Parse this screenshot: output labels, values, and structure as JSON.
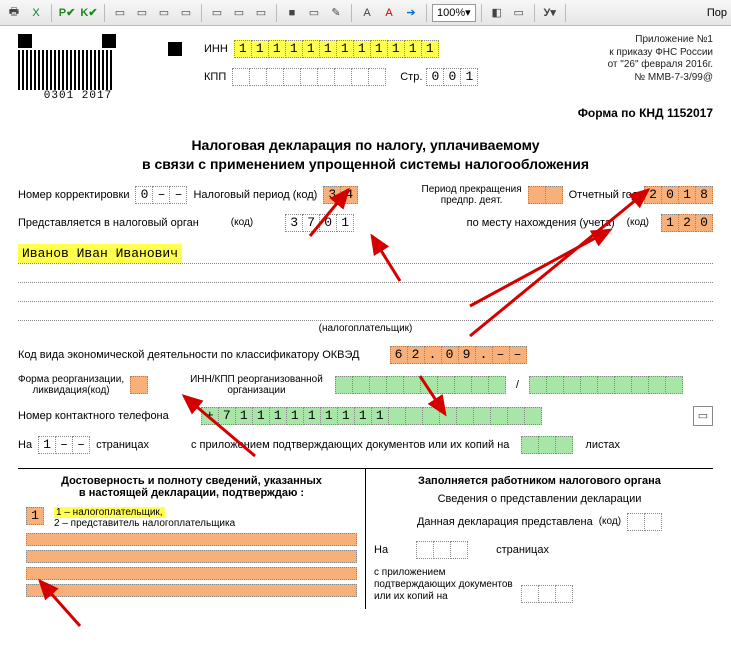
{
  "toolbar": {
    "zoom": "100%",
    "rightLabel": "Пор",
    "btnP": "P",
    "btnK": "K",
    "btnU": "У"
  },
  "hdr": {
    "barcodeLabel": "0301 2017",
    "innLabel": "ИНН",
    "inn": [
      "1",
      "1",
      "1",
      "1",
      "1",
      "1",
      "1",
      "1",
      "1",
      "1",
      "1",
      "1"
    ],
    "kppLabel": "КПП",
    "kpp": [
      "",
      "",
      "",
      "",
      "",
      "",
      "",
      "",
      ""
    ],
    "strLabel": "Стр.",
    "str": [
      "0",
      "0",
      "1"
    ],
    "app1": "Приложение №1",
    "app2": "к приказу ФНС России",
    "app3": "от \"26\" февраля 2016г.",
    "app4": "№ ММВ-7-3/99@",
    "knd": "Форма по КНД 1152017"
  },
  "title1": "Налоговая декларация по налогу, уплачиваемому",
  "title2": "в связи с применением упрощенной системы налогообложения",
  "r1": {
    "corrLabel": "Номер корректировки",
    "corr": [
      "0",
      "–",
      "–"
    ],
    "periodLabel": "Налоговый период  (код)",
    "period": [
      "3",
      "4"
    ],
    "terminLabel1": "Период прекращения",
    "terminLabel2": "предпр. деят.",
    "termin": [
      "",
      ""
    ],
    "yearLabel": "Отчетный год",
    "year": [
      "2",
      "0",
      "1",
      "8"
    ]
  },
  "r2": {
    "submitLabel": "Представляется в налоговый орган",
    "kodLabel": "(код)",
    "organ": [
      "3",
      "7",
      "0",
      "1"
    ],
    "placeLabel": "по месту нахождения (учета)",
    "place": [
      "1",
      "2",
      "0"
    ]
  },
  "fio": "Иванов Иван Иванович",
  "taxpayer": "(налогоплательщик)",
  "okved": {
    "label": "Код вида экономической деятельности по классификатору ОКВЭД",
    "cells": [
      "6",
      "2",
      ".",
      "0",
      "9",
      ".",
      "–",
      "–"
    ]
  },
  "reorg": {
    "formLabel1": "Форма реорганизации,",
    "formLabel2": "ликвидация(код)",
    "form": [
      ""
    ],
    "innkppLabel1": "ИНН/КПП реорганизованной",
    "innkppLabel2": "организации",
    "innkpp1": [
      "",
      "",
      "",
      "",
      "",
      "",
      "",
      "",
      "",
      ""
    ],
    "sep": "/",
    "innkpp2": [
      "",
      "",
      "",
      "",
      "",
      "",
      "",
      "",
      ""
    ]
  },
  "phone": {
    "label": "Номер контактного телефона",
    "cells": [
      "+",
      "7",
      "1",
      "1",
      "1",
      "1",
      "1",
      "1",
      "1",
      "1",
      "1",
      "",
      "",
      "",
      "",
      "",
      "",
      "",
      "",
      ""
    ]
  },
  "pages": {
    "onLabel": "На",
    "on": [
      "1",
      "–",
      "–"
    ],
    "pagesWord": "страницах",
    "attachLabel": "с приложением подтверждающих документов или их копий на",
    "attach": [
      "",
      "",
      ""
    ],
    "sheetsWord": "листах"
  },
  "bottom": {
    "leftTitle1": "Достоверность и полноту сведений, указанных",
    "leftTitle2": "в настоящей декларации, подтверждаю :",
    "who": [
      "1"
    ],
    "who1": "1 – налогоплательщик,",
    "who2": "2 – представитель налогоплательщика",
    "rightTitle": "Заполняется работником налогового органа",
    "r1": "Сведения о представлении декларации",
    "r2a": "Данная декларация представлена",
    "r2kod": "(код)",
    "r2cells": [
      "",
      ""
    ],
    "r3a": "На",
    "r3cells": [
      "",
      "",
      ""
    ],
    "r3b": "страницах",
    "r4a": "с приложением",
    "r4b": "подтверждающих документов",
    "r4c": "или их копий на",
    "r4cells": [
      "",
      "",
      ""
    ]
  },
  "colors": {
    "yellow": "#ffff4d",
    "orange": "#f7b07a",
    "green": "#a7e6a7"
  }
}
